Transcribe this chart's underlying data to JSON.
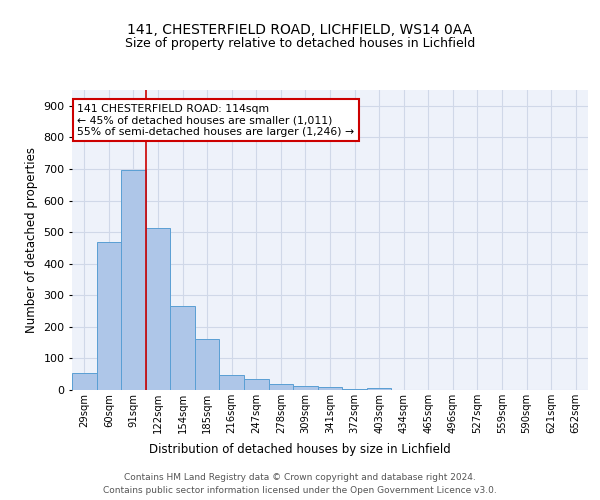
{
  "title1": "141, CHESTERFIELD ROAD, LICHFIELD, WS14 0AA",
  "title2": "Size of property relative to detached houses in Lichfield",
  "xlabel": "Distribution of detached houses by size in Lichfield",
  "ylabel": "Number of detached properties",
  "bar_color": "#aec6e8",
  "bar_edge_color": "#5a9fd4",
  "categories": [
    "29sqm",
    "60sqm",
    "91sqm",
    "122sqm",
    "154sqm",
    "185sqm",
    "216sqm",
    "247sqm",
    "278sqm",
    "309sqm",
    "341sqm",
    "372sqm",
    "403sqm",
    "434sqm",
    "465sqm",
    "496sqm",
    "527sqm",
    "559sqm",
    "590sqm",
    "621sqm",
    "652sqm"
  ],
  "values": [
    55,
    468,
    697,
    513,
    265,
    160,
    47,
    35,
    20,
    13,
    10,
    2,
    7,
    0,
    0,
    0,
    0,
    0,
    0,
    0,
    0
  ],
  "ylim": [
    0,
    950
  ],
  "yticks": [
    0,
    100,
    200,
    300,
    400,
    500,
    600,
    700,
    800,
    900
  ],
  "redline_index": 2.5,
  "annotation_title": "141 CHESTERFIELD ROAD: 114sqm",
  "annotation_line1": "← 45% of detached houses are smaller (1,011)",
  "annotation_line2": "55% of semi-detached houses are larger (1,246) →",
  "annotation_box_color": "#ffffff",
  "annotation_box_edge": "#cc0000",
  "grid_color": "#d0d8e8",
  "background_color": "#eef2fa",
  "footnote1": "Contains HM Land Registry data © Crown copyright and database right 2024.",
  "footnote2": "Contains public sector information licensed under the Open Government Licence v3.0."
}
